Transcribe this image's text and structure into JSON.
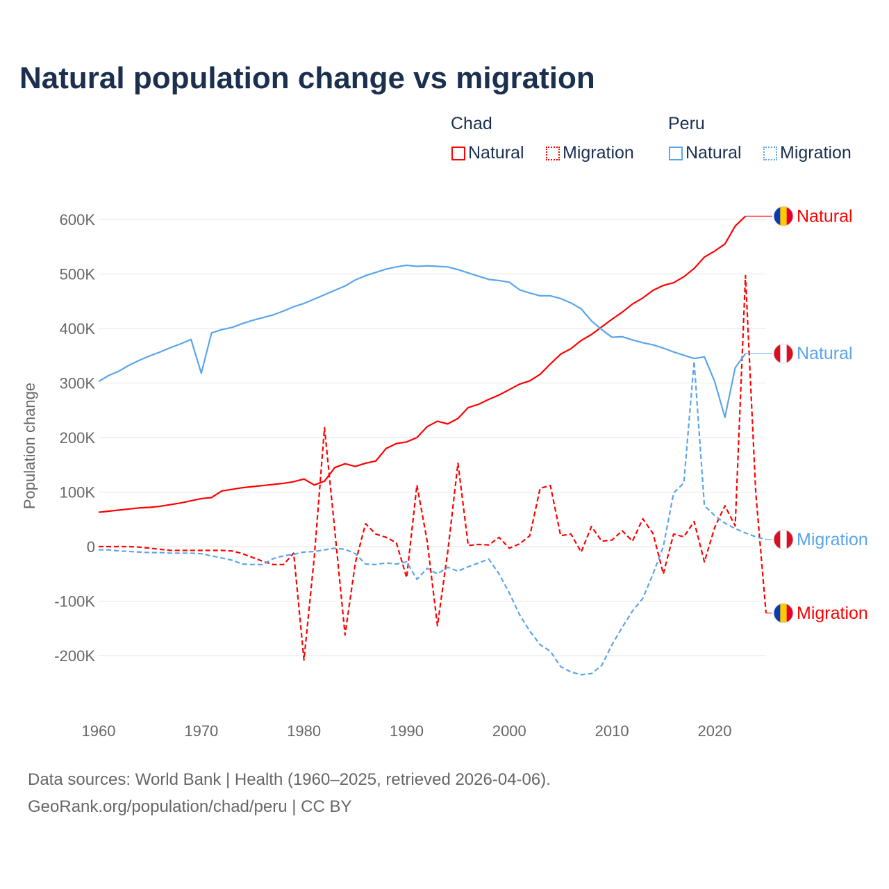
{
  "title": "Natural population change vs migration",
  "legend": {
    "groups": [
      {
        "name": "Chad",
        "items": [
          "Natural",
          "Migration"
        ],
        "color": "#ff0000"
      },
      {
        "name": "Peru",
        "items": [
          "Natural",
          "Migration"
        ],
        "color": "#5aa5ea"
      }
    ]
  },
  "source_line1": "Data sources: World Bank | Health (1960–2025, retrieved 2026-04-06).",
  "source_line2": "GeoRank.org/population/chad/peru | CC BY",
  "chart_data": {
    "type": "line",
    "title": "Natural population change vs migration",
    "xlabel": "",
    "ylabel": "Population change",
    "xlim": [
      1960,
      2025
    ],
    "ylim": [
      -300000,
      650000
    ],
    "x_ticks": [
      1960,
      1970,
      1980,
      1990,
      2000,
      2010,
      2020
    ],
    "x_tick_labels": [
      "1960",
      "1970",
      "1980",
      "1990",
      "2000",
      "2010",
      "2020"
    ],
    "y_ticks": [
      -200000,
      -100000,
      0,
      100000,
      200000,
      300000,
      400000,
      500000,
      600000
    ],
    "y_tick_labels": [
      "-200K",
      "-100K",
      "0",
      "100K",
      "200K",
      "300K",
      "400K",
      "500K",
      "600K"
    ],
    "grid": true,
    "legend_position": "top-right",
    "series": [
      {
        "name": "Chad Natural",
        "country": "Chad",
        "kind": "Natural",
        "color": "#ff0000",
        "dash": "solid",
        "end_label": "Natural",
        "x_start": 1960,
        "values": [
          63000,
          65000,
          67000,
          69000,
          71000,
          72000,
          74000,
          77000,
          80000,
          84000,
          88000,
          90000,
          102000,
          105000,
          108000,
          110000,
          112000,
          114000,
          116000,
          119000,
          124000,
          113000,
          120000,
          145000,
          152000,
          147000,
          153000,
          157000,
          180000,
          189000,
          192000,
          200000,
          220000,
          230000,
          225000,
          235000,
          255000,
          261000,
          270000,
          278000,
          288000,
          298000,
          304000,
          316000,
          335000,
          353000,
          363000,
          378000,
          389000,
          403000,
          417000,
          430000,
          445000,
          456000,
          470000,
          479000,
          484000,
          495000,
          510000,
          531000,
          542000,
          555000,
          588000,
          606000
        ]
      },
      {
        "name": "Chad Migration",
        "country": "Chad",
        "kind": "Migration",
        "color": "#ff0000",
        "dash": "dashed",
        "end_label": "Migration",
        "x_start": 1960,
        "values": [
          0,
          0,
          0,
          0,
          -1000,
          -3000,
          -5000,
          -7000,
          -7000,
          -7000,
          -7000,
          -7000,
          -7000,
          -8000,
          -13000,
          -20000,
          -27000,
          -33000,
          -33000,
          -12000,
          -208000,
          -20000,
          218000,
          30000,
          -162000,
          -30000,
          42000,
          23000,
          17000,
          7000,
          -57000,
          113000,
          10000,
          -145000,
          -10000,
          153000,
          2000,
          4000,
          3000,
          17000,
          -3000,
          5000,
          20000,
          107000,
          112000,
          20000,
          23000,
          -10000,
          37000,
          10000,
          12000,
          29000,
          10000,
          51000,
          24000,
          -50000,
          23000,
          18000,
          46000,
          -28000,
          35000,
          75000,
          38000,
          497000,
          100000,
          -122000
        ]
      },
      {
        "name": "Peru Natural",
        "country": "Peru",
        "kind": "Natural",
        "color": "#5aa5ea",
        "dash": "solid",
        "end_label": "Natural",
        "x_start": 1960,
        "values": [
          303000,
          314000,
          322000,
          333000,
          342000,
          350000,
          357000,
          365000,
          372000,
          380000,
          318000,
          392000,
          398000,
          402000,
          409000,
          415000,
          420000,
          425000,
          432000,
          440000,
          446000,
          454000,
          462000,
          470000,
          478000,
          489000,
          497000,
          503000,
          509000,
          513000,
          516000,
          514000,
          515000,
          514000,
          513000,
          508000,
          502000,
          496000,
          490000,
          488000,
          485000,
          471000,
          465000,
          460000,
          460000,
          455000,
          447000,
          436000,
          414000,
          398000,
          384000,
          385000,
          379000,
          374000,
          370000,
          364000,
          357000,
          351000,
          345000,
          348000,
          303000,
          237000,
          328000,
          354000
        ]
      },
      {
        "name": "Peru Migration",
        "country": "Peru",
        "kind": "Migration",
        "color": "#5aa5ea",
        "dash": "dashed",
        "end_label": "Migration",
        "x_start": 1960,
        "values": [
          -6000,
          -6000,
          -8000,
          -9000,
          -10000,
          -11000,
          -11000,
          -12000,
          -12000,
          -12000,
          -13000,
          -17000,
          -21000,
          -25000,
          -32000,
          -33000,
          -33000,
          -22000,
          -17000,
          -14000,
          -10000,
          -9000,
          -6000,
          -3000,
          -5000,
          -13000,
          -32000,
          -33000,
          -30000,
          -32000,
          -28000,
          -60000,
          -40000,
          -50000,
          -38000,
          -45000,
          -37000,
          -30000,
          -23000,
          -50000,
          -85000,
          -125000,
          -155000,
          -180000,
          -192000,
          -220000,
          -230000,
          -235000,
          -233000,
          -218000,
          -180000,
          -148000,
          -118000,
          -95000,
          -50000,
          0,
          98000,
          117000,
          340000,
          75000,
          57000,
          43000,
          33000,
          25000,
          18000,
          13000
        ]
      }
    ]
  }
}
